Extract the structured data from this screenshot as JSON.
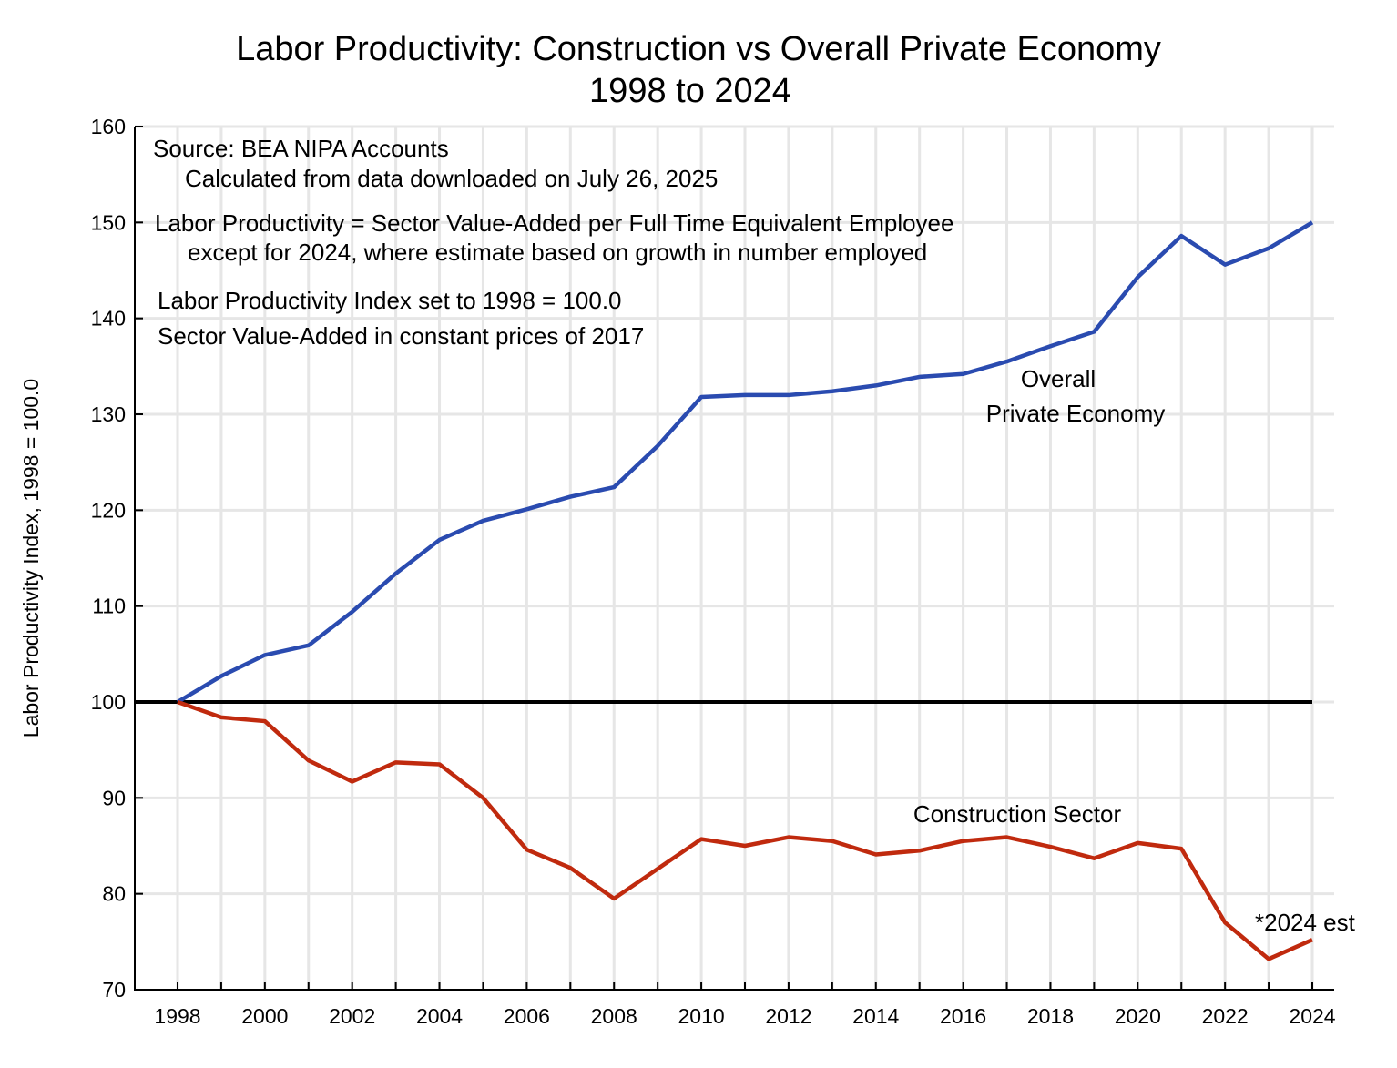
{
  "chart_data": {
    "type": "line",
    "title": "Labor Productivity:  Construction vs Overall Private Economy",
    "subtitle": "1998 to 2024",
    "xlabel": "",
    "ylabel": "Labor Productivity Index, 1998 = 100.0",
    "xlim": [
      1998,
      2024
    ],
    "ylim": [
      70,
      160
    ],
    "grid": true,
    "x_tick_labels": [
      "1998",
      "2000",
      "2002",
      "2004",
      "2006",
      "2008",
      "2010",
      "2012",
      "2014",
      "2016",
      "2018",
      "2020",
      "2022",
      "2024"
    ],
    "y_tick_labels": [
      "70",
      "80",
      "90",
      "100",
      "110",
      "120",
      "130",
      "140",
      "150",
      "160"
    ],
    "x": [
      1998,
      1999,
      2000,
      2001,
      2002,
      2003,
      2004,
      2005,
      2006,
      2007,
      2008,
      2009,
      2010,
      2011,
      2012,
      2013,
      2014,
      2015,
      2016,
      2017,
      2018,
      2019,
      2020,
      2021,
      2022,
      2023,
      2024
    ],
    "series": [
      {
        "name": "Overall Private Economy",
        "label_lines": [
          "Overall",
          "Private Economy"
        ],
        "color": "#2a4bb0",
        "values": [
          100.0,
          102.7,
          104.9,
          105.9,
          109.4,
          113.4,
          116.9,
          118.9,
          120.1,
          121.4,
          122.4,
          126.7,
          131.8,
          132.0,
          132.0,
          132.4,
          133.0,
          133.9,
          134.2,
          135.5,
          137.1,
          138.6,
          144.3,
          148.6,
          145.6,
          147.3,
          150.0
        ]
      },
      {
        "name": "Construction Sector",
        "color": "#c02a0e",
        "values": [
          100.0,
          98.4,
          98.0,
          93.9,
          91.7,
          93.7,
          93.5,
          90.0,
          84.6,
          82.7,
          79.5,
          82.6,
          85.7,
          85.0,
          85.9,
          85.5,
          84.1,
          84.5,
          85.5,
          85.9,
          84.9,
          83.7,
          85.3,
          84.7,
          77.0,
          73.2,
          75.2
        ]
      }
    ],
    "reference_line": {
      "value": 100,
      "color": "#000000"
    },
    "annotations": {
      "source": "Source:  BEA NIPA Accounts",
      "downloaded": "Calculated from data downloaded on July 26, 2025",
      "definition": "Labor Productivity = Sector Value-Added per Full Time Equivalent Employee",
      "exception": "except for 2024, where estimate based on growth in number employed",
      "index_note": "Labor Productivity Index set to 1998 = 100.0",
      "prices_note": "Sector Value-Added in constant prices of 2017",
      "estimate_note": "*2024 est"
    }
  }
}
